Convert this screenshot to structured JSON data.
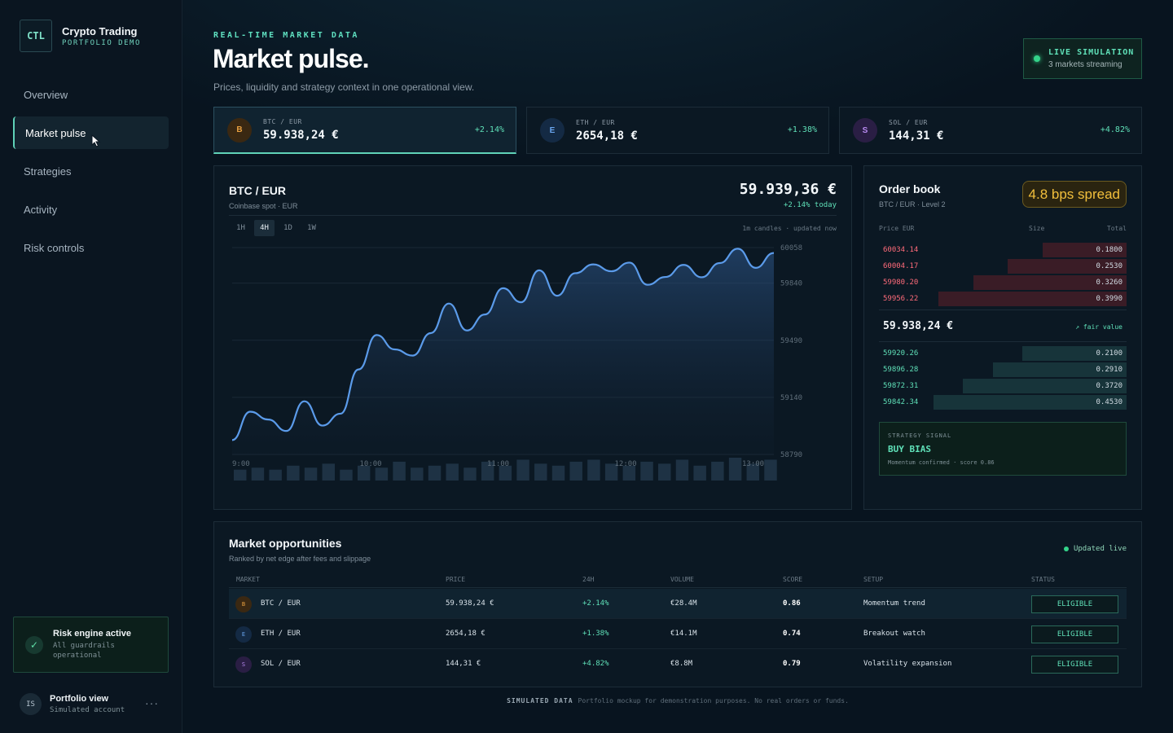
{
  "brand": {
    "logo": "CTL",
    "title": "Crypto Trading",
    "subtitle": "PORTFOLIO DEMO"
  },
  "nav": {
    "items": [
      {
        "label": "Overview"
      },
      {
        "label": "Market pulse",
        "active": true
      },
      {
        "label": "Strategies"
      },
      {
        "label": "Activity"
      },
      {
        "label": "Risk controls"
      }
    ]
  },
  "risk": {
    "icon": "check-icon",
    "title": "Risk engine active",
    "line1": "All guardrails",
    "line2": "operational"
  },
  "user": {
    "initials": "IS",
    "name": "Portfolio view",
    "sub": "Simulated account",
    "menu": "···"
  },
  "header": {
    "eyebrow": "REAL-TIME MARKET DATA",
    "title": "Market pulse.",
    "subtitle": "Prices, liquidity and strategy context in one operational view."
  },
  "live": {
    "title": "LIVE SIMULATION",
    "sub": "3 markets streaming",
    "color": "#34d38a"
  },
  "tickers": [
    {
      "letter": "B",
      "pair": "BTC / EUR",
      "price": "59.938,24 €",
      "change": "+2.14%",
      "color": "#d08a2a"
    },
    {
      "letter": "E",
      "pair": "ETH / EUR",
      "price": "2654,18 €",
      "change": "+1.38%",
      "color": "#4a8ad8"
    },
    {
      "letter": "S",
      "pair": "SOL / EUR",
      "price": "144,31 €",
      "change": "+4.82%",
      "color": "#a070e0"
    }
  ],
  "chart": {
    "title": "BTC / EUR",
    "subtitle": "Coinbase spot · EUR",
    "price": "59.939,36 €",
    "today": "+2.14% today",
    "timeframes": [
      "1H",
      "4H",
      "1D",
      "1W"
    ],
    "active_timeframe": "4H",
    "meta": "1m candles · updated now"
  },
  "chart_data": {
    "type": "line",
    "x_labels": [
      "9:00",
      "10:00",
      "11:00",
      "12:00",
      "13:00"
    ],
    "y_ticks": [
      60058,
      59840,
      59490,
      59140,
      58790
    ],
    "ylim": [
      58790,
      60058
    ],
    "values": [
      58878,
      59052,
      59004,
      58934,
      59116,
      58967,
      59040,
      59311,
      59522,
      59434,
      59396,
      59534,
      59715,
      59550,
      59648,
      59809,
      59723,
      59919,
      59763,
      59901,
      59955,
      59913,
      59966,
      59830,
      59878,
      59952,
      59876,
      59963,
      60051,
      59934,
      60025
    ],
    "volume": [
      3,
      4,
      3,
      5,
      4,
      6,
      3,
      5,
      4,
      7,
      4,
      5,
      6,
      4,
      7,
      5,
      8,
      6,
      5,
      7,
      8,
      6,
      5,
      7,
      6,
      8,
      5,
      7,
      9,
      6,
      8
    ],
    "line_color": "#5b9bea"
  },
  "orderbook": {
    "title": "Order book",
    "subtitle": "BTC / EUR · Level 2",
    "spread": "4.8 bps spread",
    "col_price": "Price EUR",
    "col_size": "Size",
    "col_total": "Total",
    "asks": [
      {
        "price": "60034.14",
        "size": "0.1800",
        "depth": 0.34
      },
      {
        "price": "60004.17",
        "size": "0.2530",
        "depth": 0.48
      },
      {
        "price": "59980.20",
        "size": "0.3260",
        "depth": 0.62
      },
      {
        "price": "59956.22",
        "size": "0.3990",
        "depth": 0.76
      }
    ],
    "mid": "59.938,24 €",
    "mid_tag": "↗ fair value",
    "bids": [
      {
        "price": "59920.26",
        "size": "0.2100",
        "depth": 0.42
      },
      {
        "price": "59896.28",
        "size": "0.2910",
        "depth": 0.54
      },
      {
        "price": "59872.31",
        "size": "0.3720",
        "depth": 0.66
      },
      {
        "price": "59842.34",
        "size": "0.4530",
        "depth": 0.78
      }
    ],
    "ask_color": "#ff6b7a",
    "bid_color": "#5fe0b8",
    "signal": {
      "label": "STRATEGY SIGNAL",
      "value": "BUY BIAS",
      "note": "Momentum confirmed · score 0.86"
    }
  },
  "opportunities": {
    "title": "Market opportunities",
    "subtitle": "Ranked by net edge after fees and slippage",
    "live": "Updated live",
    "columns": [
      "MARKET",
      "PRICE",
      "24H",
      "VOLUME",
      "SCORE",
      "SETUP",
      "STATUS"
    ],
    "rows": [
      {
        "letter": "B",
        "market": "BTC / EUR",
        "price": "59.938,24 €",
        "change": "+2.14%",
        "volume": "€28.4M",
        "score": "0.86",
        "setup": "Momentum trend",
        "status": "ELIGIBLE"
      },
      {
        "letter": "E",
        "market": "ETH / EUR",
        "price": "2654,18 €",
        "change": "+1.38%",
        "volume": "€14.1M",
        "score": "0.74",
        "setup": "Breakout watch",
        "status": "ELIGIBLE"
      },
      {
        "letter": "S",
        "market": "SOL / EUR",
        "price": "144,31 €",
        "change": "+4.82%",
        "volume": "€8.8M",
        "score": "0.79",
        "setup": "Volatility expansion",
        "status": "ELIGIBLE"
      }
    ]
  },
  "footer": {
    "label": "SIMULATED DATA",
    "text": "Portfolio mockup for demonstration purposes. No real orders or funds."
  }
}
